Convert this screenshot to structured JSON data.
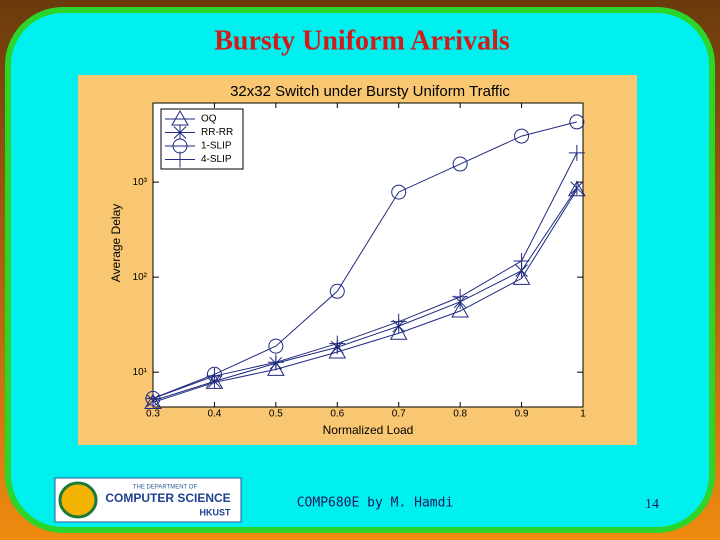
{
  "slide_title": "Bursty Uniform Arrivals",
  "footer": "COMP680E by M. Hamdi",
  "page_number": "14",
  "logo": {
    "line1": "THE DEPARTMENT OF",
    "line2": "COMPUTER SCIENCE",
    "line3": "HKUST"
  },
  "chart_data": {
    "type": "line",
    "title": "32x32 Switch under Bursty Uniform Traffic",
    "x_label": "Normalized Load",
    "y_label": "Average Delay",
    "x": [
      0.3,
      0.4,
      0.5,
      0.6,
      0.7,
      0.8,
      0.9,
      0.99
    ],
    "series": [
      {
        "name": "OQ",
        "marker": "triangle",
        "color": "#1f2a80",
        "values": [
          4.8,
          7.8,
          10.7,
          16.3,
          25.7,
          44,
          97,
          830
        ]
      },
      {
        "name": "RR-RR",
        "marker": "x",
        "color": "#1f2a80",
        "values": [
          5,
          8,
          12.4,
          18.3,
          30.5,
          55,
          117,
          870
        ]
      },
      {
        "name": "1-SLIP",
        "marker": "circle",
        "color": "#1f2a80",
        "values": [
          5.3,
          9.5,
          18.8,
          71,
          785,
          1550,
          3050,
          4300
        ]
      },
      {
        "name": "4-SLIP",
        "marker": "plus",
        "color": "#1f2a80",
        "values": [
          5.3,
          9.1,
          12.7,
          20,
          34,
          62,
          148,
          2030
        ]
      }
    ],
    "xlim": [
      0.3,
      1
    ],
    "xticks": [
      0.3,
      0.4,
      0.5,
      0.6,
      0.7,
      0.8,
      0.9,
      1
    ],
    "ylim": [
      4.3,
      6800
    ],
    "yticks": [
      {
        "value": 10,
        "label": "10¹"
      },
      {
        "value": 100,
        "label": "10²"
      },
      {
        "value": 1000,
        "label": "10³"
      }
    ],
    "y_scale": "log",
    "grid": false,
    "legend": "upper left"
  }
}
